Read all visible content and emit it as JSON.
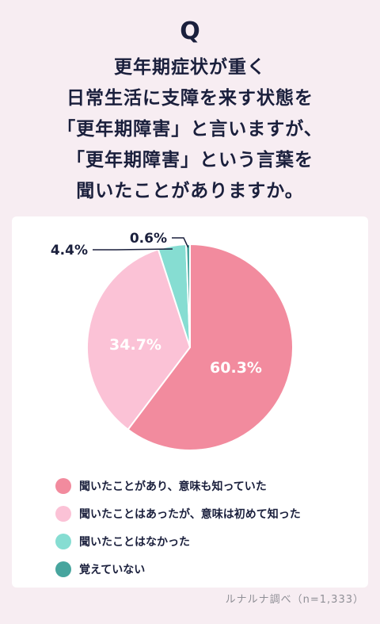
{
  "q_mark": "Q",
  "question_lines": [
    "更年期症状が重く",
    "日常生活に支障を来す状態を",
    "「更年期障害」と言いますが、",
    "「更年期障害」という言葉を",
    "聞いたことがありますか。"
  ],
  "chart_data": {
    "type": "pie",
    "slices": [
      {
        "label": "聞いたことがあり、意味も知っていた",
        "value": 60.3,
        "display": "60.3%",
        "color": "#f28b9e"
      },
      {
        "label": "聞いたことはあったが、意味は初めて知った",
        "value": 34.7,
        "display": "34.7%",
        "color": "#fbc2d6"
      },
      {
        "label": "聞いたことはなかった",
        "value": 4.4,
        "display": "4.4%",
        "color": "#86ddd2"
      },
      {
        "label": "覚えていない",
        "value": 0.6,
        "display": "0.6%",
        "color": "#47a59e"
      }
    ],
    "legend_position": "bottom"
  },
  "source": "ルナルナ調べ（n=1,333）"
}
